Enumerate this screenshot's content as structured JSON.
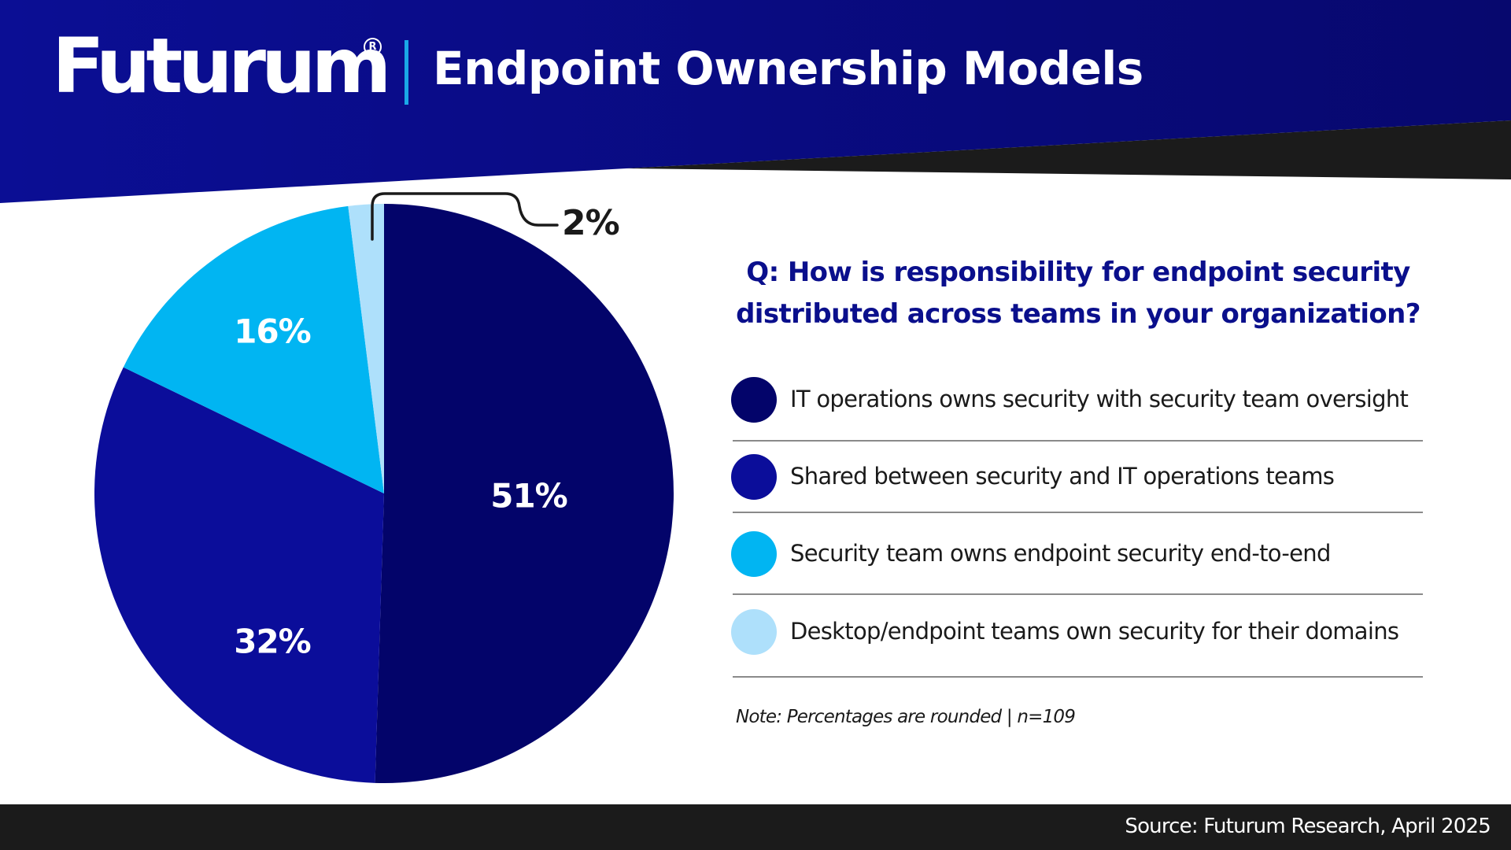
{
  "header": {
    "logo_text": "Futurum",
    "registered_mark": "R",
    "title": "Endpoint Ownership Models"
  },
  "colors": {
    "header_blue": "#0a0c8c",
    "dark_wedge": "#1b1b1b",
    "accent_separator": "#1aa8e8",
    "question_text": "#0a0f8c",
    "slice_1": "#03046a",
    "slice_2": "#0b0d9a",
    "slice_3": "#01b5f2",
    "slice_4": "#aee0fb"
  },
  "chart_data": {
    "type": "pie",
    "title": "Endpoint Ownership Models",
    "subtitle": "Q: How is responsibility for endpoint security distributed across teams in your organization?",
    "categories": [
      "IT operations owns security with security team oversight",
      "Shared between security and IT operations teams",
      "Security team owns endpoint security end-to-end",
      "Desktop/endpoint teams own security for their domains"
    ],
    "values": [
      51,
      32,
      16,
      2
    ],
    "unit": "%",
    "labels": [
      "51%",
      "32%",
      "16%",
      "2%"
    ],
    "colors": [
      "#03046a",
      "#0b0d9a",
      "#01b5f2",
      "#aee0fb"
    ],
    "legend_position": "right",
    "note": "Note: Percentages are rounded | n=109",
    "source": "Source: Futurum Research, April 2025"
  },
  "pie": {
    "labels": {
      "slice_1": "51%",
      "slice_2": "32%",
      "slice_3": "16%",
      "slice_4": "2%"
    }
  },
  "question": {
    "line1": "Q: How is responsibility for endpoint security",
    "line2": "distributed across teams in your organization?"
  },
  "legend": {
    "items": [
      {
        "label": "IT operations owns security with security team oversight"
      },
      {
        "label": "Shared between security and IT operations teams"
      },
      {
        "label": "Security team owns endpoint security end-to-end"
      },
      {
        "label": "Desktop/endpoint teams own security for their domains"
      }
    ]
  },
  "note": "Note: Percentages are rounded | n=109",
  "footer": {
    "source": "Source: Futurum Research, April 2025"
  }
}
